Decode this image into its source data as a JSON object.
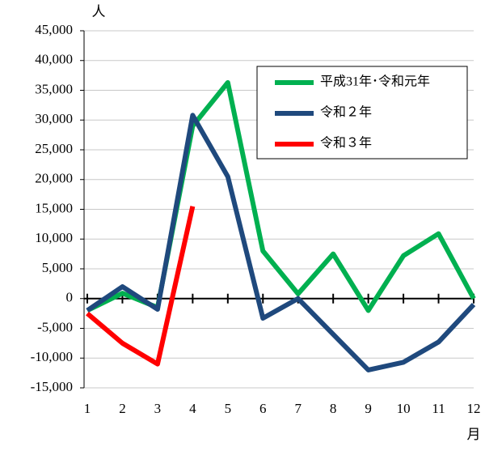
{
  "chart_data": {
    "type": "line",
    "y_label": "人",
    "x_label": "月",
    "categories": [
      "1",
      "2",
      "3",
      "4",
      "5",
      "6",
      "7",
      "8",
      "9",
      "10",
      "11",
      "12"
    ],
    "series": [
      {
        "name": "平成31年･令和元年",
        "color": "#00b050",
        "values": [
          -2000,
          900,
          -1500,
          29000,
          36300,
          8000,
          800,
          7500,
          -2000,
          7200,
          10900,
          0
        ]
      },
      {
        "name": "令和２年",
        "color": "#1f497d",
        "values": [
          -2000,
          2000,
          -1800,
          30800,
          20500,
          -3300,
          0,
          -6000,
          -12000,
          -10700,
          -7300,
          -1000
        ]
      },
      {
        "name": "令和３年",
        "color": "#ff0000",
        "values": [
          -2500,
          -7500,
          -11000,
          15500,
          null,
          null,
          null,
          null,
          null,
          null,
          null,
          null
        ]
      }
    ],
    "ylim": [
      -15000,
      45000
    ],
    "yticks": [
      {
        "value": -15000,
        "label": "-15,000"
      },
      {
        "value": -10000,
        "label": "-10,000"
      },
      {
        "value": -5000,
        "label": "-5,000"
      },
      0,
      {
        "value": 5000,
        "label": "5,000"
      },
      {
        "value": 10000,
        "label": "10,000"
      },
      {
        "value": 15000,
        "label": "15,000"
      },
      {
        "value": 20000,
        "label": "20,000"
      },
      {
        "value": 25000,
        "label": "25,000"
      },
      {
        "value": 30000,
        "label": "30,000"
      },
      {
        "value": 35000,
        "label": "35,000"
      },
      {
        "value": 40000,
        "label": "40,000"
      },
      {
        "value": 45000,
        "label": "45,000"
      }
    ],
    "negative_tick_color": "#ff0000",
    "grid": true,
    "legend": "upper right"
  }
}
